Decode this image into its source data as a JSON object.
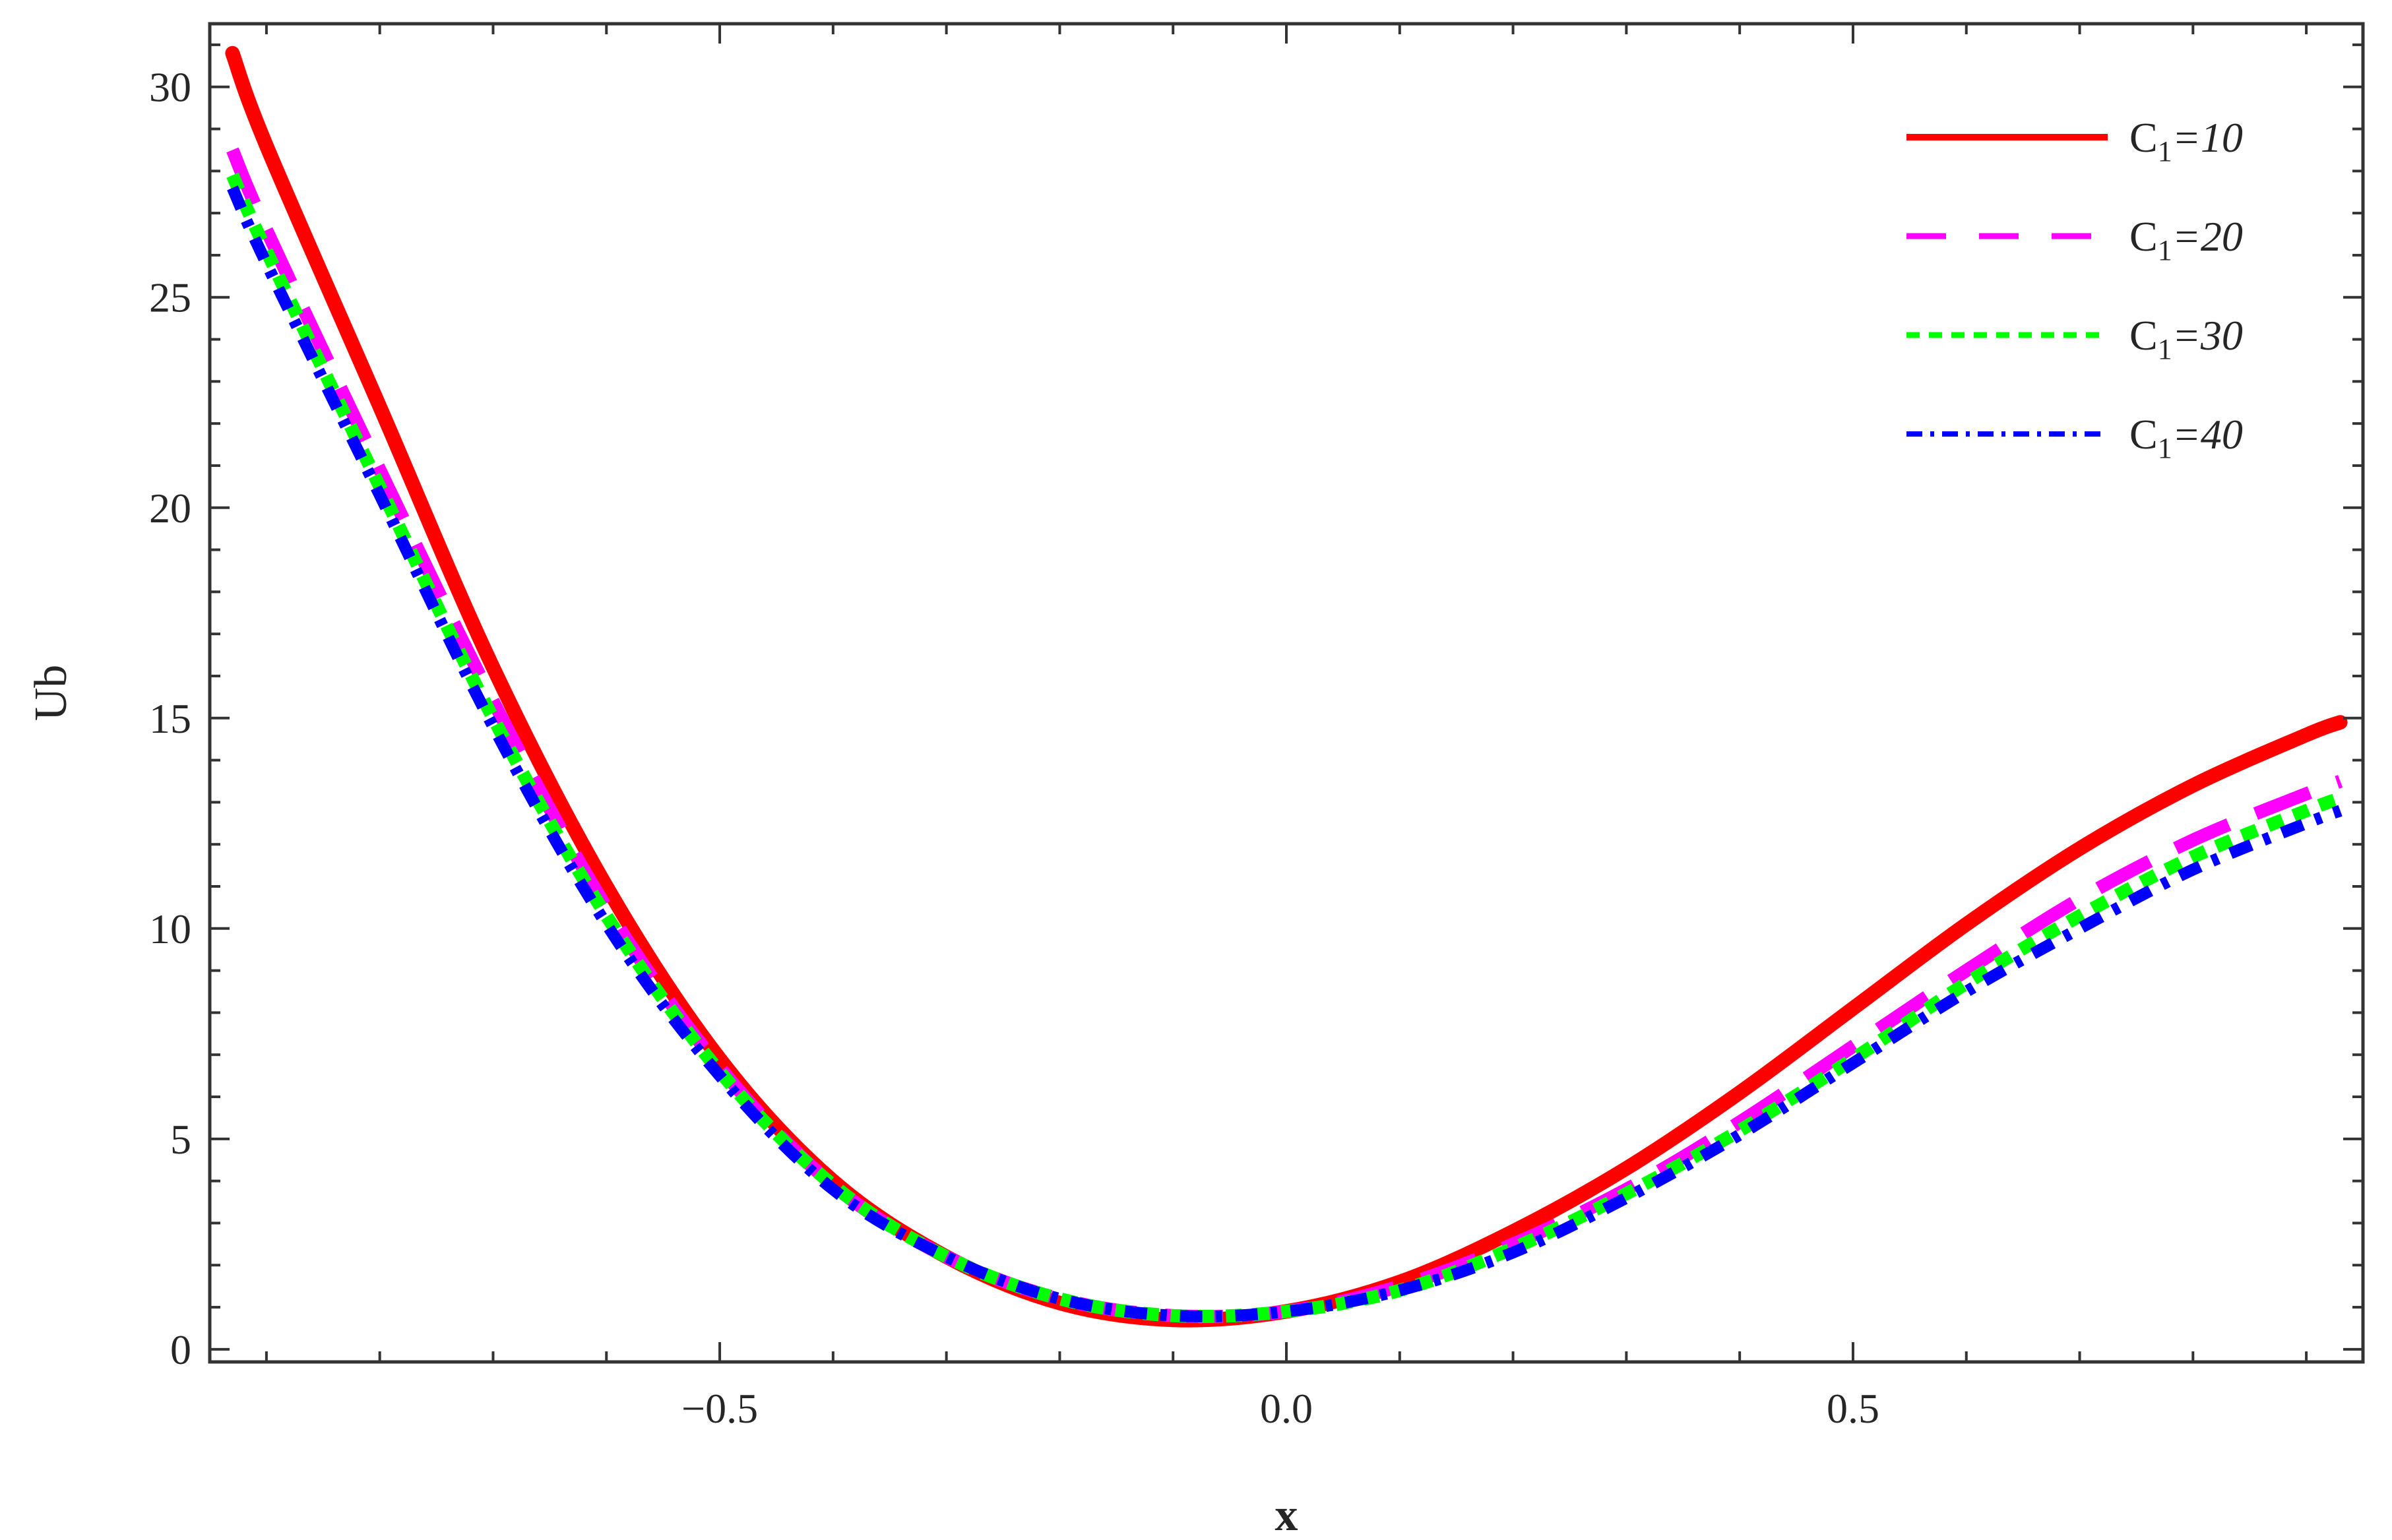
{
  "chart_data": {
    "type": "line",
    "title": "",
    "xlabel": "x",
    "ylabel": "Ub",
    "xlim": [
      -0.95,
      0.95
    ],
    "ylim": [
      -0.3,
      31.5
    ],
    "x_ticks": [
      -0.5,
      0.0,
      0.5
    ],
    "x_tick_labels": [
      "−0.5",
      "0.0",
      "0.5"
    ],
    "x_minor_step": 0.1,
    "y_ticks": [
      0,
      5,
      10,
      15,
      20,
      25,
      30
    ],
    "y_tick_labels": [
      "0",
      "5",
      "10",
      "15",
      "20",
      "25",
      "30"
    ],
    "y_minor_step": 1,
    "grid": false,
    "frame": true,
    "legend_position": "top-right",
    "series": [
      {
        "name": "C₁=10",
        "label_base": "C",
        "label_sub": "1",
        "label_value": "=10",
        "color": "#ff0000",
        "style": "solid",
        "x": [
          -0.93,
          -0.9,
          -0.8,
          -0.7,
          -0.6,
          -0.5,
          -0.4,
          -0.3,
          -0.2,
          -0.1,
          0.0,
          0.1,
          0.2,
          0.3,
          0.4,
          0.5,
          0.6,
          0.7,
          0.8,
          0.9,
          0.93
        ],
        "y": [
          30.8,
          28.6,
          22.4,
          16.2,
          11.0,
          6.9,
          4.0,
          2.2,
          1.1,
          0.7,
          0.9,
          1.6,
          2.8,
          4.3,
          6.1,
          8.1,
          10.1,
          11.9,
          13.4,
          14.6,
          14.9
        ]
      },
      {
        "name": "C₁=20",
        "label_base": "C",
        "label_sub": "1",
        "label_value": "=20",
        "color": "#ff00ff",
        "style": "dashed",
        "x": [
          -0.93,
          -0.9,
          -0.8,
          -0.7,
          -0.6,
          -0.5,
          -0.4,
          -0.3,
          -0.2,
          -0.1,
          0.0,
          0.1,
          0.2,
          0.3,
          0.4,
          0.5,
          0.6,
          0.7,
          0.8,
          0.9,
          0.93
        ],
        "y": [
          28.5,
          26.6,
          20.9,
          15.4,
          10.5,
          6.7,
          3.9,
          2.2,
          1.2,
          0.8,
          0.9,
          1.5,
          2.5,
          3.8,
          5.4,
          7.2,
          9.0,
          10.7,
          12.1,
          13.2,
          13.5
        ]
      },
      {
        "name": "C₁=30",
        "label_base": "C",
        "label_sub": "1",
        "label_value": "=30",
        "color": "#00ff00",
        "style": "dotted",
        "x": [
          -0.93,
          -0.9,
          -0.8,
          -0.7,
          -0.6,
          -0.5,
          -0.4,
          -0.3,
          -0.2,
          -0.1,
          0.0,
          0.1,
          0.2,
          0.3,
          0.4,
          0.5,
          0.6,
          0.7,
          0.8,
          0.9,
          0.93
        ],
        "y": [
          27.9,
          26.1,
          20.5,
          15.0,
          10.3,
          6.6,
          3.9,
          2.2,
          1.2,
          0.8,
          0.9,
          1.4,
          2.4,
          3.7,
          5.2,
          6.9,
          8.7,
          10.3,
          11.7,
          12.8,
          13.1
        ]
      },
      {
        "name": "C₁=40",
        "label_base": "C",
        "label_sub": "1",
        "label_value": "=40",
        "color": "#0000ff",
        "style": "dash-dot",
        "x": [
          -0.93,
          -0.9,
          -0.8,
          -0.7,
          -0.6,
          -0.5,
          -0.4,
          -0.3,
          -0.2,
          -0.1,
          0.0,
          0.1,
          0.2,
          0.3,
          0.4,
          0.5,
          0.6,
          0.7,
          0.8,
          0.9,
          0.93
        ],
        "y": [
          27.6,
          25.8,
          20.3,
          14.8,
          10.1,
          6.5,
          3.8,
          2.2,
          1.2,
          0.8,
          0.9,
          1.4,
          2.3,
          3.6,
          5.1,
          6.8,
          8.5,
          10.0,
          11.4,
          12.5,
          12.8
        ]
      }
    ]
  }
}
